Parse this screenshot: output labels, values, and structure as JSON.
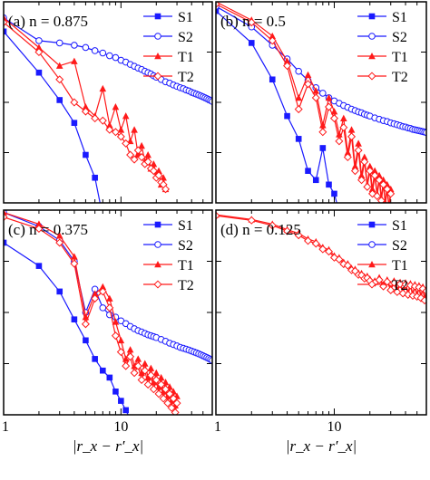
{
  "colors": {
    "singlet": "#1a1aff",
    "triplet": "#ff1a1a"
  },
  "legend": [
    "S1",
    "S2",
    "T1",
    "T2"
  ],
  "xaxis_label": "|r_x − r′_x|",
  "chart_data": [
    {
      "type": "line",
      "panel_label": "(a) n = 0.875",
      "log_x": true,
      "log_y": true,
      "xlim": [
        1,
        60
      ],
      "x_ticks": [
        "1",
        "10"
      ],
      "series": [
        {
          "name": "S1",
          "marker": "filled-square",
          "x": [
            1,
            2,
            3,
            4,
            5,
            6,
            7,
            8
          ],
          "y": [
            -0.85,
            -1.75,
            -2.35,
            -2.85,
            -3.55,
            -4.05,
            -4.9,
            -5.6
          ]
        },
        {
          "name": "S2",
          "marker": "open-circle",
          "x": [
            1,
            2,
            3,
            4,
            5,
            6,
            7,
            8,
            9,
            10,
            11,
            12,
            13,
            14,
            15,
            16,
            17,
            18,
            19,
            20,
            22,
            24,
            26,
            28,
            30,
            32,
            34,
            36,
            38,
            40,
            42,
            44,
            46,
            48,
            50,
            52,
            54,
            56,
            58,
            60
          ],
          "y": [
            -0.55,
            -1.05,
            -1.1,
            -1.15,
            -1.2,
            -1.27,
            -1.32,
            -1.38,
            -1.42,
            -1.48,
            -1.52,
            -1.57,
            -1.61,
            -1.65,
            -1.68,
            -1.72,
            -1.75,
            -1.78,
            -1.82,
            -1.85,
            -1.9,
            -1.95,
            -1.98,
            -2.02,
            -2.05,
            -2.08,
            -2.1,
            -2.13,
            -2.15,
            -2.18,
            -2.2,
            -2.22,
            -2.24,
            -2.26,
            -2.28,
            -2.3,
            -2.32,
            -2.34,
            -2.36,
            -2.38
          ]
        },
        {
          "name": "T1",
          "marker": "filled-triangle",
          "x": [
            1,
            2,
            3,
            4,
            5,
            6,
            7,
            8,
            9,
            10,
            11,
            12,
            13,
            14,
            15,
            16,
            17,
            18,
            19,
            20,
            21,
            22,
            23,
            24
          ],
          "y": [
            -0.55,
            -1.2,
            -1.6,
            -1.5,
            -2.5,
            -2.7,
            -2.1,
            -2.9,
            -2.5,
            -3.0,
            -2.7,
            -3.25,
            -3.0,
            -3.55,
            -3.35,
            -3.7,
            -3.55,
            -3.85,
            -3.75,
            -4.0,
            -3.9,
            -4.2,
            -4.05,
            -4.3
          ]
        },
        {
          "name": "T2",
          "marker": "open-diamond",
          "x": [
            1,
            2,
            3,
            4,
            5,
            6,
            7,
            8,
            9,
            10,
            11,
            12,
            13,
            14,
            15,
            16,
            17,
            18,
            19,
            20,
            21,
            22,
            23,
            24
          ],
          "y": [
            -0.65,
            -1.3,
            -1.9,
            -2.4,
            -2.6,
            -2.75,
            -2.8,
            -3.0,
            -3.05,
            -3.15,
            -3.3,
            -3.55,
            -3.65,
            -3.45,
            -3.6,
            -3.75,
            -3.7,
            -3.85,
            -3.9,
            -4.05,
            -4.0,
            -4.15,
            -4.2,
            -4.3
          ]
        }
      ]
    },
    {
      "type": "line",
      "panel_label": "(b) n = 0.5",
      "log_x": true,
      "log_y": true,
      "xlim": [
        1,
        60
      ],
      "x_ticks": [
        "1",
        "10"
      ],
      "series": [
        {
          "name": "S1",
          "marker": "filled-square",
          "x": [
            1,
            2,
            3,
            4,
            5,
            6,
            7,
            8,
            9,
            10,
            11
          ],
          "y": [
            -0.4,
            -1.1,
            -1.9,
            -2.7,
            -3.2,
            -3.9,
            -4.1,
            -3.4,
            -4.2,
            -4.4,
            -4.8
          ]
        },
        {
          "name": "S2",
          "marker": "open-circle",
          "x": [
            1,
            2,
            3,
            4,
            5,
            6,
            7,
            8,
            9,
            10,
            11,
            12,
            13,
            14,
            15,
            16,
            17,
            18,
            19,
            20,
            22,
            24,
            26,
            28,
            30,
            32,
            34,
            36,
            38,
            40,
            42,
            44,
            46,
            48,
            50,
            52,
            54,
            56,
            58,
            60
          ],
          "y": [
            -0.3,
            -0.75,
            -1.15,
            -1.45,
            -1.72,
            -1.92,
            -2.08,
            -2.2,
            -2.3,
            -2.37,
            -2.42,
            -2.47,
            -2.51,
            -2.55,
            -2.58,
            -2.61,
            -2.63,
            -2.66,
            -2.68,
            -2.7,
            -2.74,
            -2.77,
            -2.8,
            -2.82,
            -2.85,
            -2.87,
            -2.89,
            -2.91,
            -2.93,
            -2.94,
            -2.96,
            -2.97,
            -2.99,
            -3.0,
            -3.01,
            -3.02,
            -3.03,
            -3.04,
            -3.05,
            -3.06
          ]
        },
        {
          "name": "T1",
          "marker": "filled-triangle",
          "x": [
            1,
            2,
            3,
            4,
            5,
            6,
            7,
            8,
            9,
            10,
            11,
            12,
            13,
            14,
            15,
            16,
            17,
            18,
            19,
            20,
            21,
            22,
            23,
            24,
            25,
            26,
            27,
            28,
            29,
            30
          ],
          "y": [
            -0.2,
            -0.6,
            -0.95,
            -1.5,
            -2.3,
            -1.8,
            -2.15,
            -2.9,
            -2.3,
            -2.6,
            -3.1,
            -2.75,
            -3.5,
            -3.0,
            -3.8,
            -3.3,
            -4.0,
            -3.6,
            -4.2,
            -3.8,
            -4.3,
            -3.9,
            -4.4,
            -4.0,
            -4.5,
            -4.1,
            -4.6,
            -4.2,
            -4.7,
            -4.3
          ]
        },
        {
          "name": "T2",
          "marker": "open-diamond",
          "x": [
            1,
            2,
            3,
            4,
            5,
            6,
            7,
            8,
            9,
            10,
            11,
            12,
            13,
            14,
            15,
            16,
            17,
            18,
            19,
            20,
            21,
            22,
            23,
            24,
            25,
            26,
            27,
            28,
            29,
            30
          ],
          "y": [
            -0.25,
            -0.65,
            -1.05,
            -1.6,
            -2.55,
            -2.0,
            -2.3,
            -3.05,
            -2.5,
            -2.75,
            -3.25,
            -2.95,
            -3.6,
            -3.15,
            -3.9,
            -3.45,
            -4.1,
            -3.7,
            -4.25,
            -3.9,
            -4.4,
            -4.0,
            -4.45,
            -4.1,
            -4.55,
            -4.2,
            -4.65,
            -4.3,
            -4.75,
            -4.4
          ]
        }
      ]
    },
    {
      "type": "line",
      "panel_label": "(c) n = 0.375",
      "log_x": true,
      "log_y": true,
      "xlim": [
        1,
        60
      ],
      "x_ticks": [
        "1",
        "10"
      ],
      "series": [
        {
          "name": "S1",
          "marker": "filled-square",
          "x": [
            1,
            2,
            3,
            4,
            5,
            6,
            7,
            8,
            9,
            10,
            11,
            12,
            13
          ],
          "y": [
            -0.9,
            -1.4,
            -1.95,
            -2.55,
            -3.0,
            -3.4,
            -3.65,
            -3.8,
            -4.1,
            -4.3,
            -4.5,
            -4.7,
            -4.9
          ]
        },
        {
          "name": "S2",
          "marker": "open-circle",
          "x": [
            1,
            2,
            3,
            4,
            5,
            6,
            7,
            8,
            9,
            10,
            11,
            12,
            13,
            14,
            15,
            16,
            17,
            18,
            19,
            20,
            22,
            24,
            26,
            28,
            30,
            32,
            34,
            36,
            38,
            40,
            42,
            44,
            46,
            48,
            50,
            52,
            54,
            56,
            58,
            60
          ],
          "y": [
            -0.25,
            -0.55,
            -0.85,
            -1.3,
            -2.4,
            -1.9,
            -2.3,
            -2.45,
            -2.5,
            -2.58,
            -2.64,
            -2.7,
            -2.75,
            -2.79,
            -2.82,
            -2.85,
            -2.88,
            -2.9,
            -2.92,
            -2.94,
            -2.98,
            -3.02,
            -3.06,
            -3.09,
            -3.12,
            -3.15,
            -3.17,
            -3.19,
            -3.21,
            -3.23,
            -3.25,
            -3.27,
            -3.29,
            -3.31,
            -3.33,
            -3.35,
            -3.37,
            -3.39,
            -3.41,
            -3.43
          ]
        },
        {
          "name": "T1",
          "marker": "filled-triangle",
          "x": [
            1,
            2,
            3,
            4,
            5,
            6,
            7,
            8,
            9,
            10,
            11,
            12,
            13,
            14,
            15,
            16,
            17,
            18,
            19,
            20,
            21,
            22,
            23,
            24,
            25,
            26,
            27,
            28,
            29,
            30
          ],
          "y": [
            -0.25,
            -0.5,
            -0.75,
            -1.2,
            -2.5,
            -2.0,
            -1.85,
            -2.1,
            -2.6,
            -3.0,
            -3.4,
            -3.2,
            -3.55,
            -3.4,
            -3.7,
            -3.5,
            -3.8,
            -3.6,
            -3.9,
            -3.7,
            -4.0,
            -3.8,
            -4.1,
            -3.9,
            -4.2,
            -4.0,
            -4.3,
            -4.1,
            -4.4,
            -4.2
          ]
        },
        {
          "name": "T2",
          "marker": "open-diamond",
          "x": [
            1,
            2,
            3,
            4,
            5,
            6,
            7,
            8,
            9,
            10,
            11,
            12,
            13,
            14,
            15,
            16,
            17,
            18,
            19,
            20,
            21,
            22,
            23,
            24,
            25,
            26,
            27,
            28,
            29,
            30
          ],
          "y": [
            -0.35,
            -0.6,
            -0.9,
            -1.35,
            -2.65,
            -2.1,
            -1.95,
            -2.3,
            -2.9,
            -3.25,
            -3.55,
            -3.35,
            -3.7,
            -3.55,
            -3.85,
            -3.65,
            -3.95,
            -3.75,
            -4.05,
            -3.85,
            -4.15,
            -3.95,
            -4.25,
            -4.05,
            -4.35,
            -4.15,
            -4.45,
            -4.25,
            -4.55,
            -4.35
          ]
        }
      ]
    },
    {
      "type": "line",
      "panel_label": "(d) n = 0.125",
      "log_x": true,
      "log_y": true,
      "xlim": [
        1,
        60
      ],
      "x_ticks": [
        "1",
        "10"
      ],
      "series": [
        {
          "name": "S1",
          "marker": "filled-square",
          "x": [],
          "y": []
        },
        {
          "name": "S2",
          "marker": "open-circle",
          "x": [],
          "y": []
        },
        {
          "name": "T1",
          "marker": "filled-triangle",
          "x": [
            1,
            2,
            3,
            4,
            5,
            6,
            7,
            8,
            9,
            10,
            11,
            12,
            13,
            14,
            15,
            16,
            17,
            18,
            19,
            20,
            22,
            24,
            26,
            28,
            30,
            32,
            34,
            36,
            38,
            40,
            42,
            44,
            46,
            48,
            50,
            52,
            54,
            56,
            58,
            60
          ],
          "y": [
            -0.3,
            -0.4,
            -0.5,
            -0.62,
            -0.7,
            -0.82,
            -0.88,
            -1.0,
            -1.05,
            -1.18,
            -1.22,
            -1.32,
            -1.35,
            -1.45,
            -1.47,
            -1.55,
            -1.56,
            -1.63,
            -1.62,
            -1.68,
            -1.72,
            -1.65,
            -1.8,
            -1.7,
            -1.88,
            -1.72,
            -1.92,
            -1.75,
            -1.95,
            -1.76,
            -1.98,
            -1.78,
            -2.0,
            -1.8,
            -2.02,
            -1.82,
            -2.05,
            -1.85,
            -2.1,
            -1.9
          ]
        },
        {
          "name": "T2",
          "marker": "open-diamond",
          "x": [
            1,
            2,
            3,
            4,
            5,
            6,
            7,
            8,
            9,
            10,
            11,
            12,
            13,
            14,
            15,
            16,
            17,
            18,
            19,
            20,
            22,
            24,
            26,
            28,
            30,
            32,
            34,
            36,
            38,
            40,
            42,
            44,
            46,
            48,
            50,
            52,
            54,
            56,
            58,
            60
          ],
          "y": [
            -0.32,
            -0.42,
            -0.53,
            -0.65,
            -0.74,
            -0.86,
            -0.92,
            -1.04,
            -1.09,
            -1.22,
            -1.26,
            -1.36,
            -1.39,
            -1.49,
            -1.51,
            -1.59,
            -1.6,
            -1.67,
            -1.66,
            -1.72,
            -1.76,
            -1.7,
            -1.84,
            -1.74,
            -1.92,
            -1.76,
            -1.96,
            -1.79,
            -1.99,
            -1.8,
            -2.02,
            -1.82,
            -2.04,
            -1.84,
            -2.06,
            -1.86,
            -2.09,
            -1.89,
            -2.14,
            -1.94
          ]
        }
      ]
    }
  ]
}
